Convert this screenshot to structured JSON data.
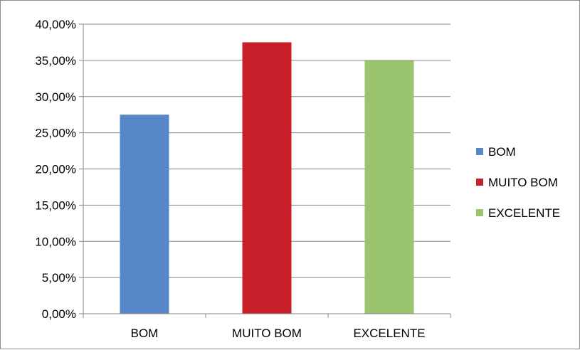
{
  "chart_data": {
    "type": "bar",
    "categories": [
      "BOM",
      "MUITO BOM",
      "EXCELENTE"
    ],
    "values": [
      27.5,
      37.5,
      35.0
    ],
    "ylim": [
      0,
      40
    ],
    "ytick_values": [
      0,
      5,
      10,
      15,
      20,
      25,
      30,
      35,
      40
    ],
    "ytick_labels": [
      "0,00%",
      "5,00%",
      "10,00%",
      "15,00%",
      "20,00%",
      "25,00%",
      "30,00%",
      "35,00%",
      "40,00%"
    ],
    "grid": true,
    "legend_position": "right",
    "legend": [
      "BOM",
      "MUITO BOM",
      "EXCELENTE"
    ],
    "colors": [
      "#5587c9",
      "#c8202a",
      "#9bc46f"
    ]
  }
}
